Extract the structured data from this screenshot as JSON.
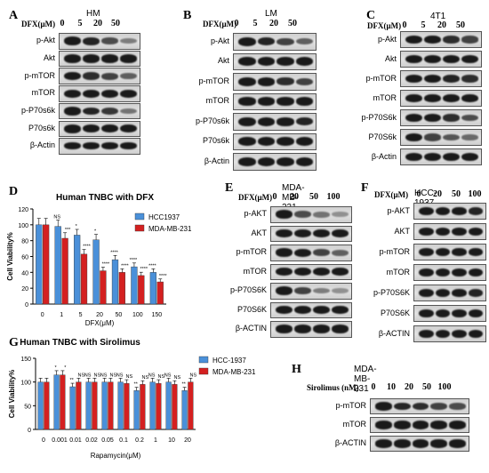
{
  "panel_letters": {
    "A": "A",
    "B": "B",
    "C": "C",
    "D": "D",
    "E": "E",
    "F": "F",
    "G": "G",
    "H": "H"
  },
  "blots": [
    {
      "id": "A",
      "title": "HM",
      "header": "DFX(μM)",
      "lanes": [
        "0",
        "5",
        "20",
        "50"
      ],
      "rows": [
        {
          "label": "p-Akt",
          "levels": [
            0.95,
            0.75,
            0.55,
            0.3
          ]
        },
        {
          "label": "Akt",
          "levels": [
            0.9,
            0.9,
            0.88,
            0.88
          ]
        },
        {
          "label": "p-mTOR",
          "levels": [
            0.85,
            0.7,
            0.6,
            0.45
          ]
        },
        {
          "label": "mTOR",
          "levels": [
            0.85,
            0.85,
            0.82,
            0.82
          ]
        },
        {
          "label": "p-P70s6k",
          "levels": [
            0.9,
            0.75,
            0.65,
            0.35
          ]
        },
        {
          "label": "P70s6k",
          "levels": [
            0.9,
            0.88,
            0.85,
            0.85
          ]
        }
      ]
    },
    {
      "id": "B",
      "title": "LM",
      "header": "DFX(μM)",
      "lanes": [
        "0",
        "5",
        "20",
        "50"
      ],
      "rows": [
        {
          "label": "p-Akt",
          "levels": [
            0.9,
            0.75,
            0.6,
            0.45
          ]
        },
        {
          "label": "Akt",
          "levels": [
            0.9,
            0.9,
            0.88,
            0.88
          ]
        },
        {
          "label": "p-mTOR",
          "levels": [
            0.9,
            0.8,
            0.7,
            0.6
          ]
        },
        {
          "label": "mTOR",
          "levels": [
            0.85,
            0.85,
            0.83,
            0.83
          ]
        },
        {
          "label": "p-P70s6k",
          "levels": [
            0.95,
            0.9,
            0.8,
            0.75
          ]
        },
        {
          "label": "P70s6k",
          "levels": [
            0.9,
            0.9,
            0.88,
            0.88
          ]
        },
        {
          "label": "β-Actin",
          "levels": [
            0.9,
            0.9,
            0.9,
            0.9
          ]
        }
      ]
    },
    {
      "id": "C",
      "title": "4T1",
      "header": "DFX(μM)",
      "lanes": [
        "0",
        "5",
        "20",
        "50"
      ],
      "rows": [
        {
          "label": "p-Akt",
          "levels": [
            0.9,
            0.8,
            0.7,
            0.6
          ]
        },
        {
          "label": "Akt",
          "levels": [
            0.85,
            0.85,
            0.85,
            0.85
          ]
        },
        {
          "label": "p-mTOR",
          "levels": [
            0.9,
            0.85,
            0.75,
            0.7
          ]
        },
        {
          "label": "mTOR",
          "levels": [
            0.8,
            0.8,
            0.8,
            0.8
          ]
        },
        {
          "label": "p-P70S6k",
          "levels": [
            0.9,
            0.85,
            0.7,
            0.55
          ]
        },
        {
          "label": "P70S6k",
          "levels": [
            0.85,
            0.6,
            0.5,
            0.4
          ]
        },
        {
          "label": "β-Actin",
          "levels": [
            0.9,
            0.9,
            0.9,
            0.9
          ]
        }
      ]
    },
    {
      "id": "E",
      "title": "MDA-MB-231",
      "header": "DFX(μM)",
      "lanes": [
        "0",
        "20",
        "50",
        "100"
      ],
      "rows": [
        {
          "label": "p-AKT",
          "levels": [
            0.95,
            0.55,
            0.35,
            0.2
          ]
        },
        {
          "label": "AKT",
          "levels": [
            0.85,
            0.85,
            0.85,
            0.85
          ]
        },
        {
          "label": "p-mTOR",
          "levels": [
            0.95,
            0.8,
            0.6,
            0.45
          ]
        },
        {
          "label": "mTOR",
          "levels": [
            0.85,
            0.85,
            0.83,
            0.83
          ]
        },
        {
          "label": "p-P70S6K",
          "levels": [
            0.95,
            0.6,
            0.3,
            0.2
          ]
        },
        {
          "label": "P70S6K",
          "levels": [
            0.85,
            0.85,
            0.85,
            0.85
          ]
        },
        {
          "label": "β-ACTIN",
          "levels": [
            0.9,
            0.9,
            0.9,
            0.9
          ]
        }
      ]
    },
    {
      "id": "F",
      "title": "HCC-1937",
      "header": "DFX(μM)",
      "lanes": [
        "0",
        "20",
        "50",
        "100"
      ],
      "rows": [
        {
          "label": "p-AKT",
          "levels": [
            0.9,
            0.85,
            0.8,
            0.75
          ]
        },
        {
          "label": "AKT",
          "levels": [
            0.85,
            0.85,
            0.85,
            0.85
          ]
        },
        {
          "label": "p-mTOR",
          "levels": [
            0.9,
            0.85,
            0.8,
            0.8
          ]
        },
        {
          "label": "mTOR",
          "levels": [
            0.85,
            0.85,
            0.85,
            0.85
          ]
        },
        {
          "label": "p-P70S6K",
          "levels": [
            0.9,
            0.85,
            0.8,
            0.75
          ]
        },
        {
          "label": "P70S6K",
          "levels": [
            0.85,
            0.85,
            0.85,
            0.85
          ]
        },
        {
          "label": "β-ACTIN",
          "levels": [
            0.9,
            0.9,
            0.9,
            0.9
          ]
        }
      ]
    },
    {
      "id": "H",
      "title": "MDA-MB-231",
      "header": "Sirolimus (nM)",
      "lanes": [
        "0",
        "10",
        "20",
        "50",
        "100"
      ],
      "rows": [
        {
          "label": "p-mTOR",
          "levels": [
            0.85,
            0.75,
            0.7,
            0.6,
            0.55
          ]
        },
        {
          "label": "mTOR",
          "levels": [
            0.85,
            0.85,
            0.85,
            0.85,
            0.85
          ]
        },
        {
          "label": "β-ACTIN",
          "levels": [
            0.9,
            0.9,
            0.9,
            0.9,
            0.9
          ]
        }
      ]
    }
  ],
  "blot_A_actin": "β-Actin",
  "chart_data": [
    {
      "type": "bar",
      "title": "Human TNBC with DFX",
      "xlabel": "DFX(μM)",
      "ylabel": "Cell Viability%",
      "categories": [
        "0",
        "1",
        "5",
        "20",
        "50",
        "100",
        "150"
      ],
      "ylim": [
        0,
        120
      ],
      "yticks": [
        "0",
        "20",
        "40",
        "60",
        "80",
        "100",
        "120"
      ],
      "series": [
        {
          "name": "HCC1937",
          "color": "#4a90d9",
          "values": [
            100,
            98,
            87,
            81,
            56,
            47,
            40
          ],
          "sig": [
            "",
            "NS",
            "*",
            "*",
            "****",
            "****",
            "****"
          ]
        },
        {
          "name": "MDA-MB-231",
          "color": "#d42020",
          "values": [
            100,
            83,
            63,
            42,
            40,
            36,
            28
          ],
          "sig": [
            "",
            "***",
            "****",
            "****",
            "****",
            "****",
            "****"
          ]
        }
      ],
      "legend": "top-right"
    },
    {
      "type": "bar",
      "title": "Human TNBC with Sirolimus",
      "xlabel": "Rapamycin(μM)",
      "ylabel": "Cell Viability%",
      "categories": [
        "0",
        "0.001",
        "0.01",
        "0.02",
        "0.05",
        "0.1",
        "0.2",
        "1",
        "10",
        "20"
      ],
      "ylim": [
        0,
        150
      ],
      "yticks": [
        "0",
        "50",
        "100",
        "150"
      ],
      "series": [
        {
          "name": "HCC-1937",
          "color": "#4a90d9",
          "values": [
            100,
            115,
            90,
            100,
            100,
            100,
            82,
            100,
            100,
            82
          ],
          "sig": [
            "",
            "*",
            "**",
            "NS",
            "NS",
            "NS",
            "**",
            "NS",
            "NS",
            "**"
          ]
        },
        {
          "name": "MDA-MB-231",
          "color": "#d42020",
          "values": [
            100,
            115,
            100,
            100,
            100,
            97,
            95,
            97,
            95,
            100
          ],
          "sig": [
            "",
            "*",
            "NS",
            "NS",
            "NS",
            "NS",
            "NS",
            "NS",
            "NS",
            "NS"
          ]
        }
      ],
      "legend": "top-right"
    }
  ]
}
